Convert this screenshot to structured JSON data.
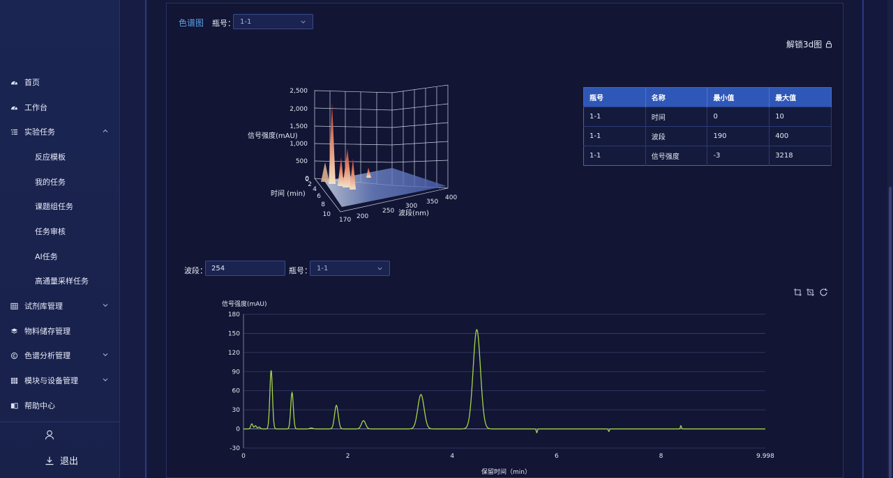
{
  "sidebar": {
    "items": [
      {
        "label": "首页",
        "icon": "dashboard-icon"
      },
      {
        "label": "工作台",
        "icon": "dashboard-icon"
      },
      {
        "label": "实验任务",
        "icon": "list-icon"
      },
      {
        "label": "试剂库管理",
        "icon": "grid-icon"
      },
      {
        "label": "物料储存管理",
        "icon": "layers-icon"
      },
      {
        "label": "色谱分析管理",
        "icon": "copyright-icon"
      },
      {
        "label": "模块与设备管理",
        "icon": "table-icon"
      },
      {
        "label": "帮助中心",
        "icon": "book-icon"
      }
    ],
    "subitems": [
      "反应模板",
      "我的任务",
      "课题组任务",
      "任务审核",
      "AI任务",
      "高通量采样任务"
    ],
    "logout": "退出"
  },
  "top": {
    "title": "色谱图",
    "bottle_label": "瓶号：",
    "bottle_value": "1-1",
    "unlock_label": "解锁3d图"
  },
  "chart3d": {
    "zlabel": "信号强度(mAU)",
    "ylabel": "时间 (min)",
    "xlabel": "波段(nm)",
    "zticks": [
      "2,500",
      "2,000",
      "1,500",
      "1,000",
      "500",
      "0"
    ],
    "yticks": [
      "0",
      "2",
      "4",
      "6",
      "8",
      "10"
    ],
    "xticks": [
      "170",
      "200",
      "250",
      "300",
      "350",
      "400"
    ]
  },
  "table": {
    "headers": [
      "瓶号",
      "名称",
      "最小值",
      "最大值"
    ],
    "rows": [
      [
        "1-1",
        "时间",
        "0",
        "10"
      ],
      [
        "1-1",
        "波段",
        "190",
        "400"
      ],
      [
        "1-1",
        "信号强度",
        "-3",
        "3218"
      ]
    ]
  },
  "filter2": {
    "wave_label": "波段：",
    "wave_value": "254",
    "bottle_label": "瓶号：",
    "bottle_value": "1-1"
  },
  "chart_data": {
    "type": "line",
    "ylabel": "信号强度(mAU)",
    "xlabel": "保留时间（min）",
    "xticks": [
      "0",
      "2",
      "4",
      "6",
      "8",
      "9.998"
    ],
    "yticks": [
      "180",
      "150",
      "120",
      "90",
      "60",
      "30",
      "0",
      "-30"
    ],
    "xlim": [
      0,
      9.998
    ],
    "ylim": [
      -30,
      180
    ],
    "grid": true,
    "peaks": [
      {
        "x": 0.16,
        "y": 8,
        "w": 0.02
      },
      {
        "x": 0.23,
        "y": 5,
        "w": 0.02
      },
      {
        "x": 0.3,
        "y": 3,
        "w": 0.02
      },
      {
        "x": 0.53,
        "y": 92,
        "w": 0.025
      },
      {
        "x": 0.93,
        "y": 57,
        "w": 0.025
      },
      {
        "x": 1.3,
        "y": 1.5,
        "w": 0.03
      },
      {
        "x": 1.78,
        "y": 37,
        "w": 0.035
      },
      {
        "x": 2.3,
        "y": 13,
        "w": 0.04
      },
      {
        "x": 3.4,
        "y": 54,
        "w": 0.06
      },
      {
        "x": 4.47,
        "y": 156,
        "w": 0.07
      },
      {
        "x": 5.62,
        "y": -6,
        "w": 0.01
      },
      {
        "x": 7.0,
        "y": -4,
        "w": 0.01
      },
      {
        "x": 8.38,
        "y": 5,
        "w": 0.01
      }
    ],
    "color": "#a5d64a"
  },
  "colors": {
    "accent": "#5aa2e8",
    "table_header": "#2f57b8",
    "line": "#a5d64a"
  }
}
